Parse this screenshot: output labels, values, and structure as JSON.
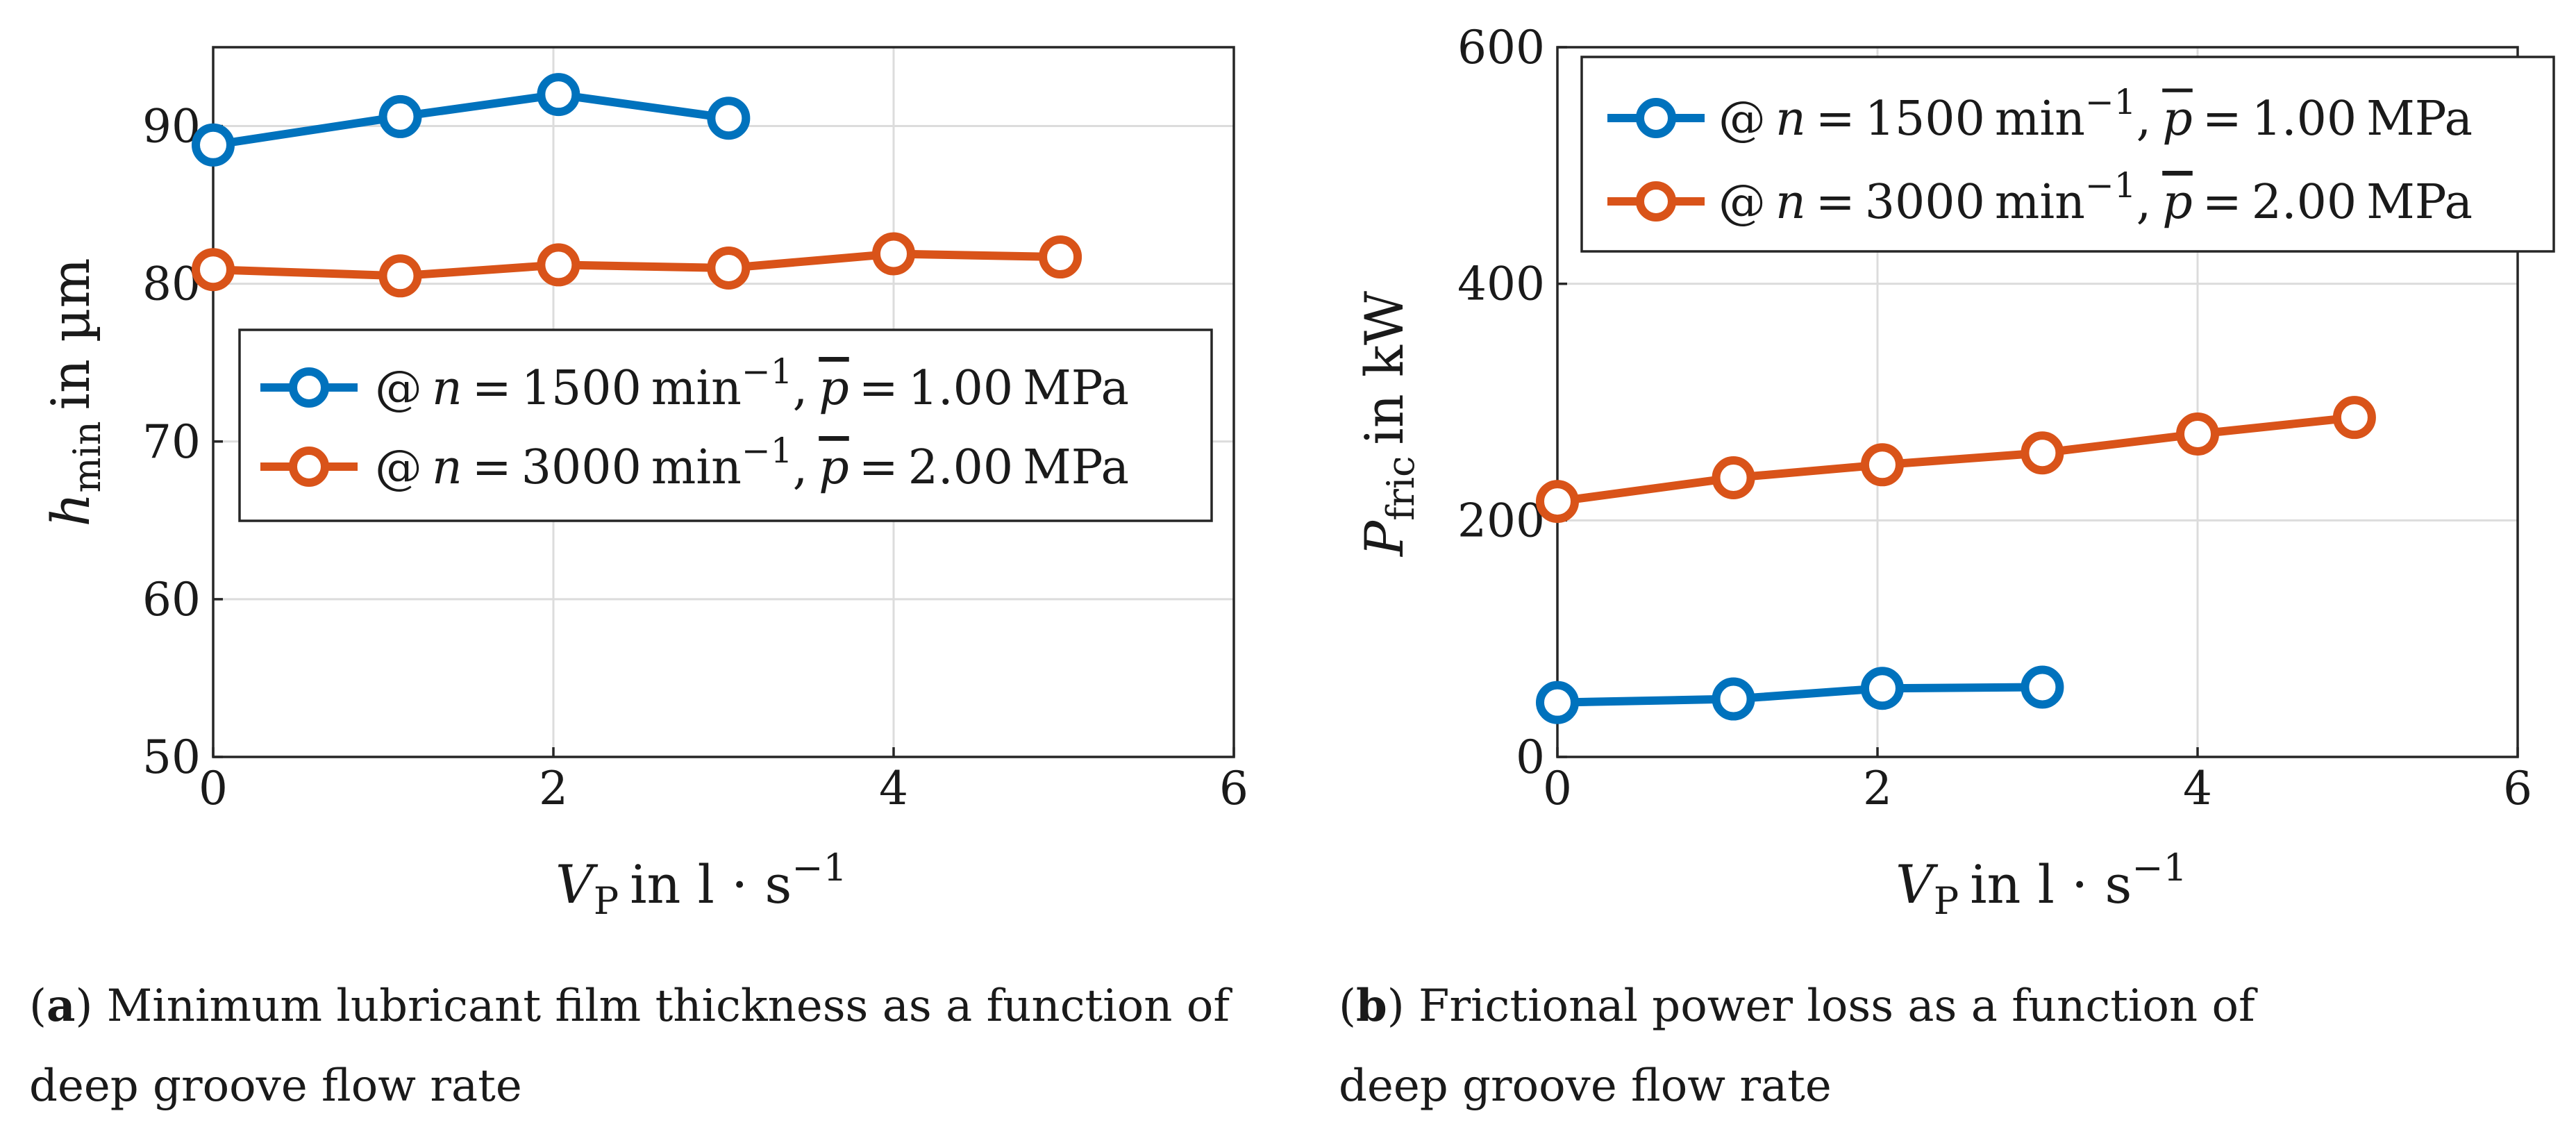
{
  "chart_data": [
    {
      "type": "line",
      "id": "a",
      "xlabel": "V_P in l·s⁻¹",
      "ylabel": "h_min in µm",
      "xlim": [
        0,
        6
      ],
      "ylim": [
        50,
        95
      ],
      "xticks": [
        0,
        2,
        4,
        6
      ],
      "yticks": [
        50,
        60,
        70,
        80,
        90
      ],
      "xtick_labels": [
        "0",
        "2",
        "4",
        "6"
      ],
      "ytick_labels": [
        "50",
        "60",
        "70",
        "80",
        "90"
      ],
      "grid": true,
      "legend_position": "center-left",
      "series": [
        {
          "name": "@ n = 1500 min⁻¹, p̄ = 1.00 MPa",
          "color": "#0072BD",
          "x": [
            0,
            1.1,
            2.03,
            3.03
          ],
          "y": [
            88.8,
            90.6,
            92.0,
            90.5
          ]
        },
        {
          "name": "@ n = 3000 min⁻¹, p̄ = 2.00 MPa",
          "color": "#D95319",
          "x": [
            0,
            1.1,
            2.03,
            3.03,
            4.0,
            4.98
          ],
          "y": [
            80.9,
            80.5,
            81.2,
            81.0,
            81.9,
            81.7
          ]
        }
      ],
      "caption_label": "a",
      "caption_text": ") Minimum lubricant film thickness as a function of",
      "caption_text2": "deep groove flow rate"
    },
    {
      "type": "line",
      "id": "b",
      "xlabel": "V_P in l·s⁻¹",
      "ylabel": "P_fric in kW",
      "xlim": [
        0,
        6
      ],
      "ylim": [
        0,
        600
      ],
      "xticks": [
        0,
        2,
        4,
        6
      ],
      "yticks": [
        0,
        200,
        400,
        600
      ],
      "xtick_labels": [
        "0",
        "2",
        "4",
        "6"
      ],
      "ytick_labels": [
        "0",
        "200",
        "400",
        "600"
      ],
      "grid": true,
      "legend_position": "top-left",
      "series": [
        {
          "name": "@ n = 1500 min⁻¹, p̄ = 1.00 MPa",
          "color": "#0072BD",
          "x": [
            0,
            1.1,
            2.03,
            3.03
          ],
          "y": [
            46,
            49,
            58,
            59
          ]
        },
        {
          "name": "@ n = 3000 min⁻¹, p̄ = 2.00 MPa",
          "color": "#D95319",
          "x": [
            0,
            1.1,
            2.03,
            3.03,
            4.0,
            4.98
          ],
          "y": [
            216,
            236,
            247,
            257,
            273,
            287
          ]
        }
      ],
      "caption_label": "b",
      "caption_text": ") Frictional power loss as a function of",
      "caption_text2": "deep groove flow rate"
    }
  ],
  "legend_text": {
    "at": "@",
    "n": "n",
    "eq": "=",
    "speed1": "1500",
    "speed2": "3000",
    "min": "min",
    "exp": "−1",
    "comma": ",",
    "p": "p",
    "pressure1": "1.00",
    "pressure2": "2.00",
    "unit": "MPa"
  },
  "axis_text": {
    "h": "h",
    "h_sub": "min",
    "h_rest": "in µm",
    "P": "P",
    "P_sub": "fric",
    "P_rest": "in kW",
    "V": "V",
    "V_sub": "P",
    "V_rest": "in l · s",
    "V_exp": "−1"
  },
  "caption_paren": "("
}
